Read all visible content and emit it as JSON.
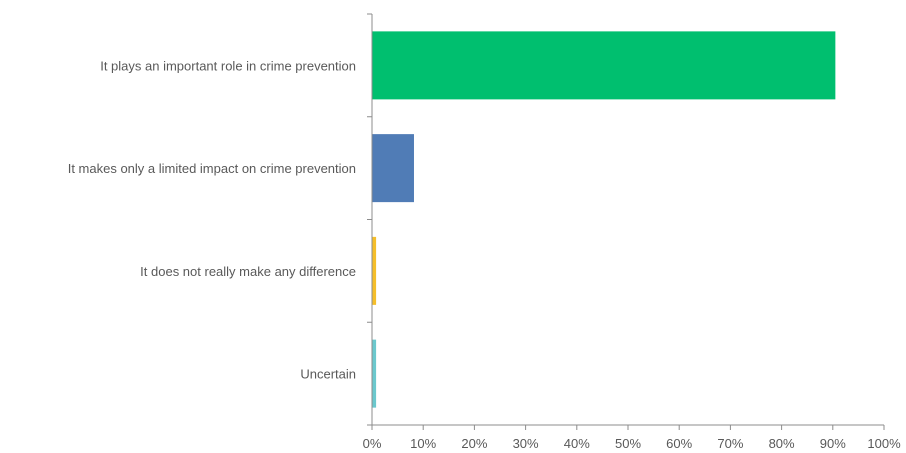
{
  "chart_data": {
    "type": "bar",
    "orientation": "horizontal",
    "title": "",
    "xlabel": "",
    "ylabel": "",
    "categories": [
      "It plays an important role in crime prevention",
      "It makes only a limited impact on crime prevention",
      "It does not really make any difference",
      "Uncertain"
    ],
    "values": [
      90.5,
      8.2,
      0.8,
      0.8
    ],
    "colors": [
      "#00bf6f",
      "#507cb6",
      "#f5be2a",
      "#6bc8cd"
    ],
    "xlim": [
      0,
      100
    ],
    "xticks": [
      "0%",
      "10%",
      "20%",
      "30%",
      "40%",
      "50%",
      "60%",
      "70%",
      "80%",
      "90%",
      "100%"
    ],
    "grid": false,
    "legend": "none"
  }
}
